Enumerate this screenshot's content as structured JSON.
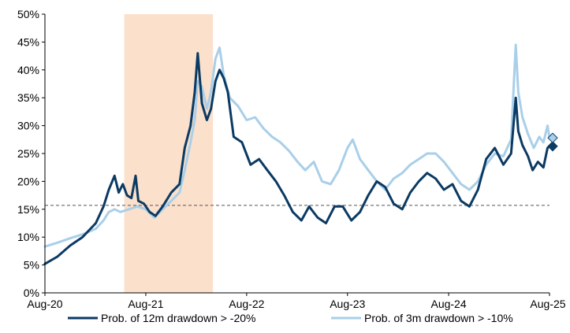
{
  "chart_data": {
    "type": "line",
    "title": "",
    "xlabel": "",
    "ylabel": "",
    "x_range": [
      "2020-08-01",
      "2025-08-01"
    ],
    "x_tick_labels": [
      "Aug-20",
      "Aug-21",
      "Aug-22",
      "Aug-23",
      "Aug-24",
      "Aug-25"
    ],
    "x_tick_dates": [
      "2020-08-01",
      "2021-08-01",
      "2022-08-01",
      "2023-08-01",
      "2024-08-01",
      "2025-08-01"
    ],
    "ylim": [
      0,
      50
    ],
    "y_tick_labels": [
      "0%",
      "5%",
      "10%",
      "15%",
      "20%",
      "25%",
      "30%",
      "35%",
      "40%",
      "45%",
      "50%"
    ],
    "y_tick_values": [
      0,
      5,
      10,
      15,
      20,
      25,
      30,
      35,
      40,
      45,
      50
    ],
    "y_unit": "%",
    "grid": false,
    "legend_position": "bottom",
    "shaded_period": {
      "start": "2021-05-15",
      "end": "2022-04-01",
      "color": "#fbe0cc"
    },
    "reference_line": {
      "value": 15.7,
      "style": "dashed",
      "color": "#555555"
    },
    "series": [
      {
        "name": "Prob. of 12m drawdown > -20%",
        "color": "#0b3a63",
        "end_marker": {
          "shape": "diamond",
          "date": "2025-08-01",
          "value": 26.3
        },
        "points": [
          [
            "2020-08-01",
            5.2
          ],
          [
            "2020-09-15",
            6.5
          ],
          [
            "2020-11-01",
            8.5
          ],
          [
            "2020-12-15",
            10.0
          ],
          [
            "2021-02-01",
            12.5
          ],
          [
            "2021-03-01",
            15.5
          ],
          [
            "2021-03-20",
            18.5
          ],
          [
            "2021-04-10",
            21.0
          ],
          [
            "2021-04-25",
            18.0
          ],
          [
            "2021-05-10",
            19.5
          ],
          [
            "2021-05-25",
            17.5
          ],
          [
            "2021-06-10",
            17.0
          ],
          [
            "2021-06-25",
            21.0
          ],
          [
            "2021-07-05",
            16.5
          ],
          [
            "2021-07-25",
            16.0
          ],
          [
            "2021-08-15",
            14.5
          ],
          [
            "2021-09-05",
            13.8
          ],
          [
            "2021-10-01",
            15.5
          ],
          [
            "2021-11-01",
            18.0
          ],
          [
            "2021-12-01",
            19.5
          ],
          [
            "2021-12-20",
            26.0
          ],
          [
            "2022-01-10",
            30.0
          ],
          [
            "2022-01-25",
            36.0
          ],
          [
            "2022-02-05",
            43.0
          ],
          [
            "2022-02-20",
            34.0
          ],
          [
            "2022-03-10",
            31.0
          ],
          [
            "2022-03-25",
            33.0
          ],
          [
            "2022-04-10",
            38.0
          ],
          [
            "2022-04-25",
            40.0
          ],
          [
            "2022-05-10",
            38.5
          ],
          [
            "2022-05-25",
            36.0
          ],
          [
            "2022-06-15",
            28.0
          ],
          [
            "2022-07-15",
            27.0
          ],
          [
            "2022-08-15",
            23.0
          ],
          [
            "2022-09-15",
            24.0
          ],
          [
            "2022-10-15",
            22.0
          ],
          [
            "2022-11-15",
            20.0
          ],
          [
            "2022-12-15",
            17.5
          ],
          [
            "2023-01-15",
            14.5
          ],
          [
            "2023-02-15",
            13.0
          ],
          [
            "2023-03-15",
            15.5
          ],
          [
            "2023-04-15",
            13.5
          ],
          [
            "2023-05-15",
            12.5
          ],
          [
            "2023-06-15",
            15.5
          ],
          [
            "2023-07-15",
            15.5
          ],
          [
            "2023-08-15",
            13.0
          ],
          [
            "2023-09-15",
            14.5
          ],
          [
            "2023-10-15",
            17.5
          ],
          [
            "2023-11-15",
            20.0
          ],
          [
            "2023-12-15",
            19.0
          ],
          [
            "2024-01-15",
            16.0
          ],
          [
            "2024-02-15",
            15.0
          ],
          [
            "2024-03-15",
            18.0
          ],
          [
            "2024-04-15",
            20.0
          ],
          [
            "2024-05-15",
            21.5
          ],
          [
            "2024-06-15",
            20.5
          ],
          [
            "2024-07-15",
            18.5
          ],
          [
            "2024-08-15",
            19.5
          ],
          [
            "2024-09-15",
            16.5
          ],
          [
            "2024-10-15",
            15.5
          ],
          [
            "2024-11-15",
            18.5
          ],
          [
            "2024-12-15",
            24.0
          ],
          [
            "2025-01-15",
            26.0
          ],
          [
            "2025-02-15",
            23.0
          ],
          [
            "2025-03-01",
            24.0
          ],
          [
            "2025-03-15",
            25.0
          ],
          [
            "2025-04-01",
            35.0
          ],
          [
            "2025-04-10",
            29.0
          ],
          [
            "2025-04-25",
            26.5
          ],
          [
            "2025-05-15",
            24.5
          ],
          [
            "2025-06-01",
            22.0
          ],
          [
            "2025-06-20",
            23.5
          ],
          [
            "2025-07-10",
            22.5
          ],
          [
            "2025-07-25",
            26.0
          ],
          [
            "2025-08-01",
            26.3
          ]
        ]
      },
      {
        "name": "Prob. of 3m drawdown > -10%",
        "color": "#a9cfe9",
        "end_marker": {
          "shape": "diamond",
          "date": "2025-08-01",
          "value": 27.8
        },
        "points": [
          [
            "2020-08-01",
            8.3
          ],
          [
            "2020-09-15",
            9.0
          ],
          [
            "2020-11-01",
            9.8
          ],
          [
            "2020-12-15",
            10.5
          ],
          [
            "2021-02-01",
            11.5
          ],
          [
            "2021-03-01",
            13.0
          ],
          [
            "2021-03-20",
            14.5
          ],
          [
            "2021-04-10",
            15.0
          ],
          [
            "2021-05-01",
            14.5
          ],
          [
            "2021-06-01",
            15.0
          ],
          [
            "2021-07-01",
            15.5
          ],
          [
            "2021-08-01",
            15.0
          ],
          [
            "2021-09-01",
            13.5
          ],
          [
            "2021-10-01",
            15.0
          ],
          [
            "2021-11-01",
            16.5
          ],
          [
            "2021-12-01",
            18.0
          ],
          [
            "2021-12-20",
            22.0
          ],
          [
            "2022-01-10",
            27.0
          ],
          [
            "2022-01-25",
            31.0
          ],
          [
            "2022-02-05",
            38.0
          ],
          [
            "2022-02-20",
            37.0
          ],
          [
            "2022-03-10",
            33.0
          ],
          [
            "2022-03-25",
            36.0
          ],
          [
            "2022-04-10",
            42.0
          ],
          [
            "2022-04-25",
            44.0
          ],
          [
            "2022-05-10",
            39.0
          ],
          [
            "2022-06-01",
            35.0
          ],
          [
            "2022-07-01",
            33.5
          ],
          [
            "2022-08-01",
            31.0
          ],
          [
            "2022-09-01",
            31.5
          ],
          [
            "2022-10-01",
            29.5
          ],
          [
            "2022-11-01",
            28.0
          ],
          [
            "2022-12-01",
            27.0
          ],
          [
            "2023-01-01",
            25.5
          ],
          [
            "2023-02-01",
            23.5
          ],
          [
            "2023-03-01",
            22.0
          ],
          [
            "2023-04-01",
            23.5
          ],
          [
            "2023-05-01",
            20.0
          ],
          [
            "2023-06-01",
            19.5
          ],
          [
            "2023-07-01",
            22.0
          ],
          [
            "2023-08-01",
            26.0
          ],
          [
            "2023-08-20",
            27.5
          ],
          [
            "2023-09-15",
            24.0
          ],
          [
            "2023-10-15",
            22.0
          ],
          [
            "2023-11-15",
            20.0
          ],
          [
            "2023-12-15",
            18.5
          ],
          [
            "2024-01-15",
            20.5
          ],
          [
            "2024-02-15",
            21.5
          ],
          [
            "2024-03-15",
            23.0
          ],
          [
            "2024-04-15",
            24.0
          ],
          [
            "2024-05-15",
            25.0
          ],
          [
            "2024-06-15",
            25.0
          ],
          [
            "2024-07-15",
            23.5
          ],
          [
            "2024-08-15",
            21.5
          ],
          [
            "2024-09-15",
            19.5
          ],
          [
            "2024-10-15",
            18.5
          ],
          [
            "2024-11-15",
            20.0
          ],
          [
            "2024-12-15",
            23.0
          ],
          [
            "2025-01-15",
            25.0
          ],
          [
            "2025-02-15",
            24.5
          ],
          [
            "2025-03-15",
            27.5
          ],
          [
            "2025-04-01",
            44.5
          ],
          [
            "2025-04-10",
            36.0
          ],
          [
            "2025-04-25",
            31.5
          ],
          [
            "2025-05-15",
            28.5
          ],
          [
            "2025-06-05",
            26.0
          ],
          [
            "2025-06-25",
            28.0
          ],
          [
            "2025-07-10",
            27.0
          ],
          [
            "2025-07-25",
            30.0
          ],
          [
            "2025-08-01",
            27.8
          ]
        ]
      }
    ]
  }
}
